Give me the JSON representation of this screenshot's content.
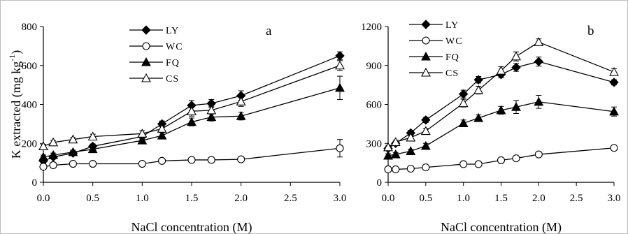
{
  "chart_data": [
    {
      "panel": "a",
      "type": "line",
      "xlabel": "NaCl concentration (M)",
      "ylabel": "K extracted (mg kg",
      "ylabel_sup": "-1",
      "ylabel_tail": ")",
      "xlim": [
        0,
        3.0
      ],
      "ylim": [
        0,
        800
      ],
      "xticks": [
        "0.0",
        "0.5",
        "1.0",
        "1.5",
        "2.0",
        "2.5",
        "3.0"
      ],
      "yticks": [
        "0",
        "200",
        "400",
        "600",
        "800"
      ],
      "grid": false,
      "legend_position": "top-left",
      "series": [
        {
          "name": "LY",
          "marker": "diamond",
          "fill": "#000000",
          "x": [
            0,
            0.1,
            0.3,
            0.5,
            1.0,
            1.2,
            1.5,
            1.7,
            2.0,
            3.0
          ],
          "y": [
            110,
            130,
            150,
            185,
            235,
            300,
            395,
            405,
            445,
            650
          ],
          "err": [
            10,
            10,
            10,
            12,
            15,
            15,
            25,
            20,
            25,
            20
          ]
        },
        {
          "name": "WC",
          "marker": "circle",
          "fill": "#ffffff",
          "x": [
            0,
            0.1,
            0.3,
            0.5,
            1.0,
            1.2,
            1.5,
            1.7,
            2.0,
            3.0
          ],
          "y": [
            80,
            88,
            95,
            95,
            95,
            110,
            115,
            115,
            118,
            175
          ],
          "err": [
            5,
            5,
            5,
            5,
            5,
            8,
            8,
            8,
            8,
            45
          ]
        },
        {
          "name": "FQ",
          "marker": "triangle",
          "fill": "#000000",
          "x": [
            0,
            0.1,
            0.3,
            0.5,
            1.0,
            1.2,
            1.5,
            1.7,
            2.0,
            3.0
          ],
          "y": [
            130,
            140,
            155,
            170,
            215,
            240,
            310,
            335,
            340,
            485
          ],
          "err": [
            10,
            10,
            10,
            12,
            15,
            15,
            20,
            20,
            20,
            60
          ]
        },
        {
          "name": "CS",
          "marker": "triangle",
          "fill": "#ffffff",
          "x": [
            0,
            0.1,
            0.3,
            0.5,
            1.0,
            1.2,
            1.5,
            1.7,
            2.0,
            3.0
          ],
          "y": [
            185,
            205,
            220,
            235,
            250,
            275,
            365,
            370,
            415,
            600
          ],
          "err": [
            10,
            10,
            10,
            12,
            15,
            15,
            25,
            20,
            25,
            25
          ]
        }
      ]
    },
    {
      "panel": "b",
      "type": "line",
      "xlabel": "NaCl concentration (M)",
      "ylabel": "",
      "xlim": [
        0,
        3.0
      ],
      "ylim": [
        0,
        1200
      ],
      "xticks": [
        "0.0",
        "0.5",
        "1.0",
        "1.5",
        "2.0",
        "2.5",
        "3.0"
      ],
      "yticks": [
        "0",
        "300",
        "600",
        "900",
        "1200"
      ],
      "grid": false,
      "legend_position": "top-left",
      "series": [
        {
          "name": "LY",
          "marker": "diamond",
          "fill": "#000000",
          "x": [
            0,
            0.1,
            0.3,
            0.5,
            1.0,
            1.2,
            1.5,
            1.7,
            2.0,
            3.0
          ],
          "y": [
            260,
            300,
            380,
            480,
            680,
            790,
            830,
            885,
            930,
            770
          ],
          "err": [
            15,
            15,
            20,
            20,
            30,
            25,
            25,
            30,
            35,
            20
          ]
        },
        {
          "name": "WC",
          "marker": "circle",
          "fill": "#ffffff",
          "x": [
            0,
            0.1,
            0.3,
            0.5,
            1.0,
            1.2,
            1.5,
            1.7,
            2.0,
            3.0
          ],
          "y": [
            100,
            100,
            105,
            115,
            140,
            140,
            170,
            185,
            215,
            265
          ],
          "err": [
            8,
            8,
            8,
            10,
            10,
            10,
            12,
            12,
            15,
            15
          ]
        },
        {
          "name": "FQ",
          "marker": "triangle",
          "fill": "#000000",
          "x": [
            0,
            0.1,
            0.3,
            0.5,
            1.0,
            1.2,
            1.5,
            1.7,
            2.0,
            3.0
          ],
          "y": [
            205,
            215,
            240,
            280,
            455,
            495,
            555,
            580,
            620,
            545
          ],
          "err": [
            15,
            15,
            15,
            20,
            25,
            25,
            30,
            50,
            50,
            35
          ]
        },
        {
          "name": "CS",
          "marker": "triangle",
          "fill": "#ffffff",
          "x": [
            0,
            0.1,
            0.3,
            0.5,
            1.0,
            1.2,
            1.5,
            1.7,
            2.0,
            3.0
          ],
          "y": [
            270,
            310,
            345,
            395,
            610,
            710,
            860,
            970,
            1080,
            850
          ],
          "err": [
            15,
            15,
            20,
            20,
            30,
            30,
            30,
            35,
            25,
            25
          ]
        }
      ]
    }
  ]
}
